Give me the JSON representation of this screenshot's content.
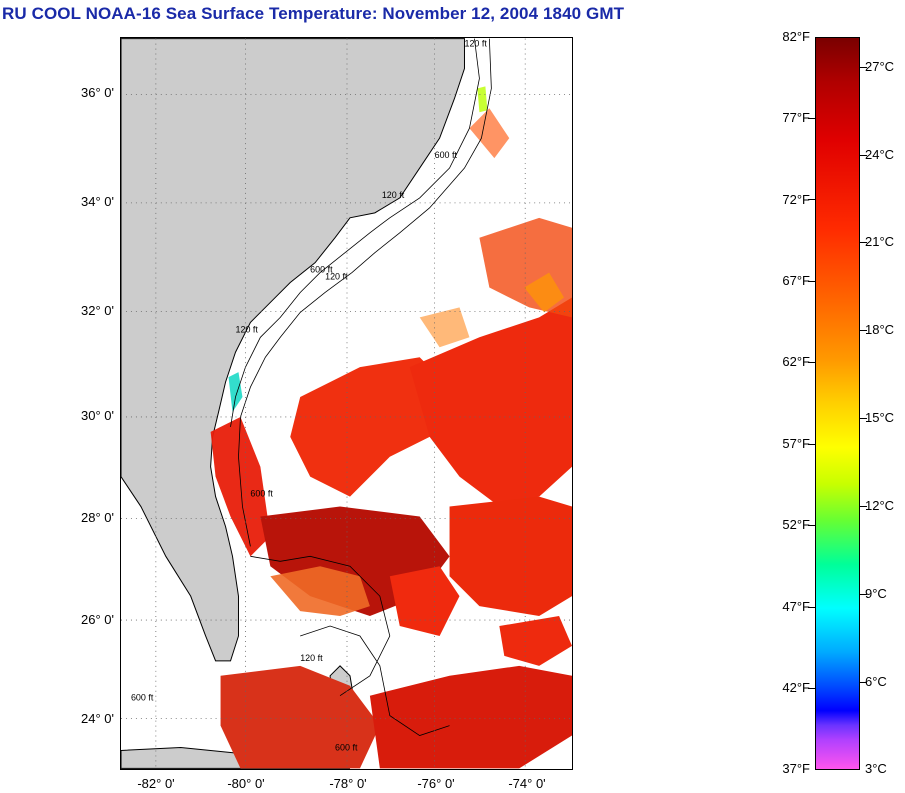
{
  "title": "RU COOL  NOAA-16  Sea Surface Temperature:  November 12, 2004 1840 GMT",
  "map": {
    "lat_labels": [
      "36° 0'",
      "34° 0'",
      "32° 0'",
      "30° 0'",
      "28° 0'",
      "26° 0'",
      "24° 0'"
    ],
    "lon_labels": [
      "-82° 0'",
      "-80° 0'",
      "-78° 0'",
      "-76° 0'",
      "-74° 0'"
    ],
    "contour_labels": [
      "120 ft",
      "600 ft",
      "120 ft",
      "600 ft",
      "120 ft",
      "600 ft",
      "120 ft",
      "600 ft",
      "120 ft",
      "600 ft"
    ],
    "land_color": "#cccccc",
    "cloud_color": "#ffffff"
  },
  "colorbar": {
    "fahrenheit_labels": [
      "82°F",
      "77°F",
      "72°F",
      "67°F",
      "62°F",
      "57°F",
      "52°F",
      "47°F",
      "42°F",
      "37°F"
    ],
    "celsius_labels": [
      "27°C",
      "24°C",
      "21°C",
      "18°C",
      "15°C",
      "12°C",
      "9°C",
      "6°C",
      "3°C"
    ]
  }
}
